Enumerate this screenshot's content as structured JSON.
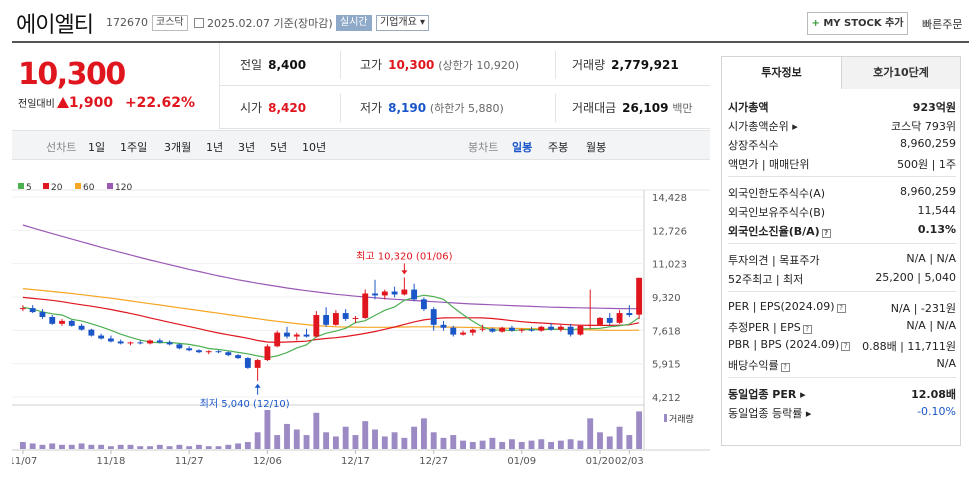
{
  "header": {
    "name": "에이엘티",
    "code": "172670",
    "market": "코스닥",
    "date": "2025.02.07",
    "basis": "기준(장마감)",
    "live_tag": "실시간",
    "info_tag": "기업개요 ▾",
    "mystock_label": "MY STOCK 추가",
    "mystock_plus": "+",
    "quick_order": "빠른주문"
  },
  "price": {
    "current": "10,300",
    "change_label": "전일대비",
    "change": "1,900",
    "change_rate": "+22.62%"
  },
  "quote": {
    "prev_label": "전일",
    "prev": "8,400",
    "high_label": "고가",
    "high": "10,300",
    "upper_limit": "(상한가 10,920)",
    "volume_label": "거래량",
    "volume": "2,779,921",
    "open_label": "시가",
    "open": "8,420",
    "low_label": "저가",
    "low": "8,190",
    "lower_limit": "(하한가 5,880)",
    "amount_label": "거래대금",
    "amount": "26,109",
    "amount_unit": "백만"
  },
  "tabs": {
    "line_label": "선차트",
    "line_periods": [
      "1일",
      "1주일",
      "3개월",
      "1년",
      "3년",
      "5년",
      "10년"
    ],
    "candle_label": "봉차트",
    "candle_periods": [
      "일봉",
      "주봉",
      "월봉"
    ]
  },
  "chart_data": {
    "type": "candlestick",
    "legend": [
      "5",
      "20",
      "60",
      "120"
    ],
    "colors": {
      "ma5": "#4caf50",
      "ma20": "#e0161f",
      "ma60": "#f5a623",
      "ma120": "#9b59b6",
      "up": "#e0161f",
      "down": "#1a56c8",
      "volume": "#9b8ac4"
    },
    "y_ticks": [
      "14,428",
      "12,726",
      "11,023",
      "9,320",
      "7,618",
      "5,915",
      "4,212"
    ],
    "ylim": [
      4212,
      14428
    ],
    "x_ticks": [
      "11/07",
      "11/18",
      "11/27",
      "12/06",
      "12/17",
      "12/27",
      "01/09",
      "01/20",
      "02/03"
    ],
    "annotations": {
      "high": "최고 10,320 (01/06)",
      "low": "최저 5,040 (12/10)"
    },
    "volume_label": "거래량",
    "candles": [
      {
        "o": 8720,
        "h": 8900,
        "l": 8600,
        "c": 8750
      },
      {
        "o": 8750,
        "h": 8900,
        "l": 8500,
        "c": 8550
      },
      {
        "o": 8550,
        "h": 8700,
        "l": 8200,
        "c": 8300
      },
      {
        "o": 8300,
        "h": 8400,
        "l": 7900,
        "c": 7950
      },
      {
        "o": 7950,
        "h": 8200,
        "l": 7850,
        "c": 8100
      },
      {
        "o": 8100,
        "h": 8150,
        "l": 7800,
        "c": 7850
      },
      {
        "o": 7850,
        "h": 7950,
        "l": 7600,
        "c": 7650
      },
      {
        "o": 7650,
        "h": 7700,
        "l": 7300,
        "c": 7350
      },
      {
        "o": 7350,
        "h": 7450,
        "l": 7150,
        "c": 7200
      },
      {
        "o": 7200,
        "h": 7350,
        "l": 7000,
        "c": 7050
      },
      {
        "o": 7050,
        "h": 7150,
        "l": 6900,
        "c": 6950
      },
      {
        "o": 6950,
        "h": 7050,
        "l": 6850,
        "c": 7000
      },
      {
        "o": 7000,
        "h": 7100,
        "l": 6900,
        "c": 6950
      },
      {
        "o": 6950,
        "h": 7150,
        "l": 6900,
        "c": 7100
      },
      {
        "o": 7100,
        "h": 7200,
        "l": 6950,
        "c": 7000
      },
      {
        "o": 7000,
        "h": 7100,
        "l": 6850,
        "c": 6900
      },
      {
        "o": 6900,
        "h": 6950,
        "l": 6650,
        "c": 6700
      },
      {
        "o": 6700,
        "h": 6800,
        "l": 6550,
        "c": 6600
      },
      {
        "o": 6600,
        "h": 6650,
        "l": 6450,
        "c": 6500
      },
      {
        "o": 6500,
        "h": 6600,
        "l": 6400,
        "c": 6550
      },
      {
        "o": 6550,
        "h": 6600,
        "l": 6450,
        "c": 6500
      },
      {
        "o": 6500,
        "h": 6550,
        "l": 6300,
        "c": 6350
      },
      {
        "o": 6350,
        "h": 6400,
        "l": 6150,
        "c": 6200
      },
      {
        "o": 6200,
        "h": 6250,
        "l": 5650,
        "c": 5700
      },
      {
        "o": 5700,
        "h": 6150,
        "l": 5040,
        "c": 6100
      },
      {
        "o": 6100,
        "h": 6900,
        "l": 6050,
        "c": 6800
      },
      {
        "o": 6800,
        "h": 7600,
        "l": 6750,
        "c": 7500
      },
      {
        "o": 7500,
        "h": 7800,
        "l": 7200,
        "c": 7300
      },
      {
        "o": 7300,
        "h": 7500,
        "l": 7100,
        "c": 7400
      },
      {
        "o": 7400,
        "h": 7700,
        "l": 7250,
        "c": 7300
      },
      {
        "o": 7300,
        "h": 8600,
        "l": 7250,
        "c": 8400
      },
      {
        "o": 8400,
        "h": 8800,
        "l": 7800,
        "c": 7900
      },
      {
        "o": 7900,
        "h": 8650,
        "l": 7850,
        "c": 8500
      },
      {
        "o": 8500,
        "h": 8700,
        "l": 8100,
        "c": 8200
      },
      {
        "o": 8200,
        "h": 8350,
        "l": 8000,
        "c": 8250
      },
      {
        "o": 8250,
        "h": 9700,
        "l": 8200,
        "c": 9500
      },
      {
        "o": 9500,
        "h": 10200,
        "l": 9200,
        "c": 9400
      },
      {
        "o": 9400,
        "h": 9700,
        "l": 9200,
        "c": 9600
      },
      {
        "o": 9600,
        "h": 9850,
        "l": 9300,
        "c": 9450
      },
      {
        "o": 9450,
        "h": 10320,
        "l": 9400,
        "c": 9700
      },
      {
        "o": 9700,
        "h": 10000,
        "l": 9100,
        "c": 9200
      },
      {
        "o": 9200,
        "h": 9300,
        "l": 8600,
        "c": 8700
      },
      {
        "o": 8700,
        "h": 8800,
        "l": 7600,
        "c": 7900
      },
      {
        "o": 7900,
        "h": 8100,
        "l": 7600,
        "c": 7750
      },
      {
        "o": 7750,
        "h": 7850,
        "l": 7300,
        "c": 7400
      },
      {
        "o": 7400,
        "h": 7600,
        "l": 7350,
        "c": 7500
      },
      {
        "o": 7500,
        "h": 7700,
        "l": 7350,
        "c": 7650
      },
      {
        "o": 7650,
        "h": 7900,
        "l": 7550,
        "c": 7700
      },
      {
        "o": 7700,
        "h": 7750,
        "l": 7500,
        "c": 7550
      },
      {
        "o": 7550,
        "h": 7800,
        "l": 7500,
        "c": 7750
      },
      {
        "o": 7750,
        "h": 7850,
        "l": 7550,
        "c": 7600
      },
      {
        "o": 7600,
        "h": 7700,
        "l": 7500,
        "c": 7650
      },
      {
        "o": 7650,
        "h": 7800,
        "l": 7550,
        "c": 7600
      },
      {
        "o": 7600,
        "h": 7850,
        "l": 7550,
        "c": 7800
      },
      {
        "o": 7800,
        "h": 8000,
        "l": 7600,
        "c": 7650
      },
      {
        "o": 7650,
        "h": 7900,
        "l": 7550,
        "c": 7800
      },
      {
        "o": 7800,
        "h": 7950,
        "l": 7300,
        "c": 7400
      },
      {
        "o": 7400,
        "h": 7900,
        "l": 7350,
        "c": 7850
      },
      {
        "o": 7850,
        "h": 9700,
        "l": 7700,
        "c": 7900
      },
      {
        "o": 7900,
        "h": 8300,
        "l": 7850,
        "c": 8250
      },
      {
        "o": 8250,
        "h": 8500,
        "l": 7900,
        "c": 8000
      },
      {
        "o": 8000,
        "h": 8650,
        "l": 7950,
        "c": 8500
      },
      {
        "o": 8500,
        "h": 8900,
        "l": 8300,
        "c": 8400
      },
      {
        "o": 8420,
        "h": 10300,
        "l": 8190,
        "c": 10300
      }
    ],
    "volumes": [
      5,
      4,
      3,
      4,
      3,
      3,
      4,
      3,
      3,
      2,
      3,
      3,
      2,
      2,
      3,
      2,
      3,
      2,
      3,
      2,
      2,
      3,
      4,
      5,
      12,
      28,
      10,
      18,
      14,
      10,
      26,
      12,
      9,
      16,
      10,
      20,
      14,
      9,
      12,
      8,
      16,
      22,
      12,
      8,
      10,
      6,
      5,
      6,
      8,
      5,
      7,
      5,
      6,
      7,
      5,
      6,
      7,
      6,
      22,
      12,
      9,
      16,
      10,
      27
    ],
    "ma5": [
      8800,
      8700,
      8560,
      8460,
      8400,
      8180,
      8100,
      7950,
      7800,
      7620,
      7420,
      7260,
      7120,
      7020,
      6980,
      7000,
      6950,
      6900,
      6810,
      6690,
      6640,
      6570,
      6490,
      6420,
      6310,
      6220,
      6310,
      6480,
      6720,
      6880,
      7280,
      7470,
      7580,
      7720,
      8010,
      8110,
      8380,
      8640,
      8810,
      9150,
      9300,
      9410,
      9340,
      9200,
      8790,
      8420,
      8080,
      7790,
      7620,
      7640,
      7600,
      7650,
      7660,
      7650,
      7670,
      7680,
      7650,
      7690,
      7700,
      7720,
      7800,
      7850,
      7930,
      8270
    ],
    "ma20": [
      9300,
      9250,
      9200,
      9150,
      9080,
      9000,
      8920,
      8850,
      8770,
      8680,
      8580,
      8480,
      8370,
      8250,
      8140,
      8030,
      7920,
      7810,
      7700,
      7590,
      7480,
      7390,
      7300,
      7210,
      7100,
      7020,
      7000,
      7020,
      7040,
      7060,
      7150,
      7200,
      7240,
      7300,
      7380,
      7460,
      7560,
      7670,
      7790,
      7920,
      8050,
      8150,
      8210,
      8250,
      8260,
      8260,
      8260,
      8250,
      8220,
      8170,
      8110,
      8060,
      8020,
      7990,
      7960,
      7930,
      7900,
      7880,
      7870,
      7870,
      7870,
      7880,
      7900,
      8000
    ],
    "ma60": [
      9750,
      9700,
      9650,
      9600,
      9550,
      9500,
      9440,
      9380,
      9320,
      9260,
      9190,
      9120,
      9050,
      8980,
      8910,
      8840,
      8770,
      8700,
      8630,
      8560,
      8490,
      8420,
      8350,
      8280,
      8210,
      8140,
      8080,
      8020,
      7960,
      7910,
      7860,
      7830,
      7800,
      7790,
      7780,
      7770,
      7770,
      7770,
      7780,
      7790,
      7800,
      7800,
      7800,
      7790,
      7780,
      7770,
      7760,
      7750,
      7740,
      7730,
      7720,
      7710,
      7700,
      7690,
      7680,
      7670,
      7660,
      7650,
      7640,
      7630,
      7620,
      7620,
      7620,
      7630
    ],
    "ma120": [
      13000,
      12850,
      12700,
      12560,
      12420,
      12280,
      12140,
      12000,
      11860,
      11730,
      11600,
      11470,
      11340,
      11210,
      11090,
      10970,
      10850,
      10730,
      10620,
      10510,
      10400,
      10300,
      10200,
      10110,
      10020,
      9940,
      9860,
      9780,
      9710,
      9640,
      9580,
      9520,
      9460,
      9410,
      9360,
      9320,
      9280,
      9240,
      9200,
      9170,
      9140,
      9110,
      9080,
      9050,
      9020,
      8990,
      8960,
      8940,
      8920,
      8900,
      8880,
      8860,
      8840,
      8820,
      8800,
      8790,
      8780,
      8770,
      8760,
      8750,
      8740,
      8730,
      8720,
      8720
    ]
  },
  "investment": {
    "tab_active": "투자정보",
    "tab_other": "호가10단계",
    "rows1": [
      {
        "k": "시가총액",
        "v": "923억원"
      },
      {
        "k": "시가총액순위 ▸",
        "v": "코스닥 793위"
      },
      {
        "k": "상장주식수",
        "v": "8,960,259"
      },
      {
        "k": "액면가 | 매매단위",
        "v": "500원 | 1주"
      }
    ],
    "rows2": [
      {
        "k": "외국인한도주식수(A)",
        "v": "8,960,259"
      },
      {
        "k": "외국인보유주식수(B)",
        "v": "11,544"
      },
      {
        "k": "외국인소진율(B/A)",
        "v": "0.13%"
      }
    ],
    "rows3": [
      {
        "k": "투자의견 | 목표주가",
        "v": "N/A | N/A"
      },
      {
        "k": "52주최고 | 최저",
        "v": "25,200 | 5,040"
      }
    ],
    "rows4": [
      {
        "k": "PER | EPS(2024.09)",
        "v": "N/A | -231원"
      },
      {
        "k": "추정PER | EPS",
        "v": "N/A | N/A"
      },
      {
        "k": "PBR | BPS (2024.09)",
        "v": "0.88배 | 11,711원"
      },
      {
        "k": "배당수익률",
        "v": "N/A"
      }
    ],
    "rows5": [
      {
        "k": "동일업종 PER ▸",
        "v": "12.08배"
      },
      {
        "k": "동일업종 등락률 ▸",
        "v": "-0.10%"
      }
    ],
    "q_icon": "?"
  }
}
